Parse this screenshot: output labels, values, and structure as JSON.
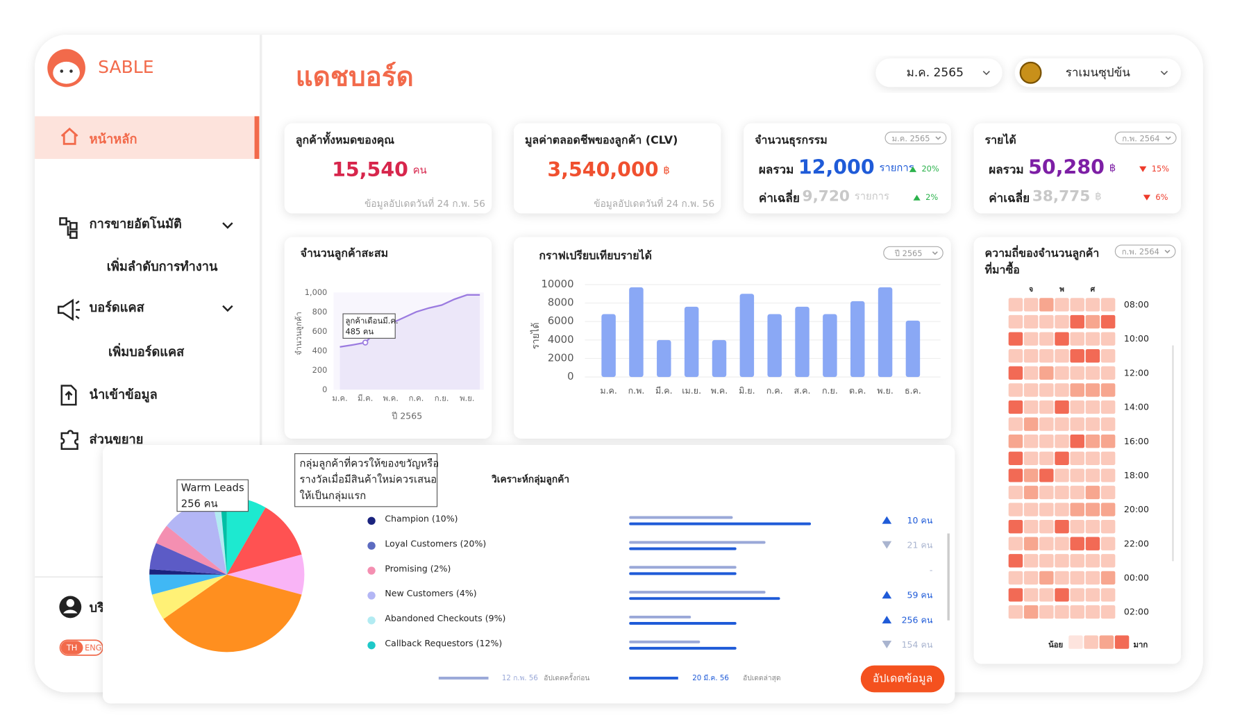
{
  "brand": "SABLE",
  "page_title": "แดชบอร์ด",
  "filters": {
    "month": "ม.ค. 2565",
    "store": "ราเมนซุปข้น"
  },
  "sidebar": {
    "items": [
      "หน้าหลัก",
      "การขายอัตโนมัติ",
      "เพิ่มลำดับการทำงาน",
      "บอร์ดแคส",
      "เพิ่มบอร์ดแคส",
      "นำเข้าข้อมูล",
      "ส่วนขยาย"
    ],
    "user": "บริ",
    "lang": [
      "TH",
      "ENG"
    ]
  },
  "kpis": [
    {
      "title": "ลูกค้าทั้งหมดของคุณ",
      "value": "15,540",
      "unit": "คน",
      "note": "ข้อมูลอัปเดตวันที่ 24 ก.พ. 56",
      "color": "#d7264c"
    },
    {
      "title": "มูลค่าตลอดชีพของลูกค้า (CLV)",
      "value": "3,540,000",
      "unit": "฿",
      "note": "ข้อมูลอัปเดตวันที่ 24 ก.พ. 56",
      "color": "#f0502f"
    },
    {
      "title": "จำนวนธุรกรรม",
      "badge": "ม.ค. 2565",
      "color": "#1f5bd8",
      "rows": [
        {
          "label": "ผลรวม",
          "value": "12,000",
          "unit": "รายการ",
          "change": "20%",
          "trend": "up"
        },
        {
          "label": "ค่าเฉลี่ย",
          "value": "9,720",
          "unit": "รายการ",
          "change": "2%",
          "trend": "up"
        }
      ]
    },
    {
      "title": "รายได้",
      "badge": "ก.พ. 2564",
      "color": "#7d1fa5",
      "rows": [
        {
          "label": "ผลรวม",
          "value": "50,280",
          "unit": "฿",
          "change": "15%",
          "trend": "down"
        },
        {
          "label": "ค่าเฉลี่ย",
          "value": "38,775",
          "unit": "฿",
          "change": "6%",
          "trend": "down"
        }
      ]
    }
  ],
  "chart_data": [
    {
      "type": "line",
      "title": "จำนวนลูกค้าสะสม",
      "y_label": "จำนวนลูกค้า",
      "x_label": "ปี 2565",
      "categories": [
        "ม.ค.",
        null,
        "มี.ค.",
        null,
        "พ.ค.",
        null,
        "ก.ค.",
        null,
        "ก.ย.",
        null,
        "พ.ย.",
        null
      ],
      "values": [
        440,
        460,
        485,
        620,
        680,
        740,
        800,
        840,
        870,
        930,
        975,
        975
      ],
      "color": "#9b7be0",
      "ylim": [
        0,
        1000
      ],
      "yticks": [
        0,
        200,
        400,
        600,
        800,
        {
          "value": 1000,
          "label": "1,000"
        }
      ],
      "grid": false,
      "tooltip": [
        "ลูกค้าเดือนมี.ค.",
        "485 คน"
      ]
    },
    {
      "type": "bar",
      "title": "กราฟเปรียบเทียบรายได้",
      "badge": "ปี 2565",
      "y_label": "รายได้",
      "categories": [
        "ม.ค.",
        "ก.พ.",
        "มี.ค.",
        "เม.ย.",
        "พ.ค.",
        "มิ.ย.",
        "ก.ค.",
        "ส.ค.",
        "ก.ย.",
        "ต.ค.",
        "พ.ย.",
        "ธ.ค."
      ],
      "values": [
        6800,
        9700,
        4000,
        7600,
        4000,
        9000,
        6800,
        7600,
        6800,
        8200,
        9700,
        6100
      ],
      "color": "#8aa8f5",
      "ylim": [
        0,
        10000
      ],
      "yticks": [
        0,
        2000,
        4000,
        6000,
        8000,
        10000
      ],
      "grid": true
    },
    {
      "type": "heatmap",
      "title": [
        "ความถี่ของจำนวนลูกค้า",
        "ที่มาซื้อ"
      ],
      "badge": "ก.พ. 2564",
      "columns": [
        null,
        "จ",
        null,
        "พ",
        null,
        "ศ",
        null
      ],
      "rows": [
        "08:00",
        null,
        "10:00",
        null,
        "12:00",
        null,
        "14:00",
        null,
        "16:00",
        null,
        "18:00",
        null,
        "20:00",
        null,
        "22:00",
        null,
        "00:00",
        null,
        "02:00"
      ],
      "values": [
        [
          1,
          1,
          2,
          1,
          1,
          1,
          1
        ],
        [
          1,
          1,
          1,
          1,
          3,
          2,
          3
        ],
        [
          3,
          1,
          1,
          3,
          1,
          1,
          1
        ],
        [
          1,
          1,
          1,
          1,
          3,
          3,
          1
        ],
        [
          3,
          1,
          2,
          1,
          1,
          1,
          1
        ],
        [
          1,
          1,
          1,
          1,
          2,
          2,
          2
        ],
        [
          3,
          1,
          1,
          3,
          1,
          1,
          1
        ],
        [
          1,
          2,
          1,
          1,
          1,
          1,
          1
        ],
        [
          2,
          1,
          1,
          1,
          3,
          2,
          2
        ],
        [
          3,
          1,
          1,
          3,
          1,
          1,
          1
        ],
        [
          3,
          2,
          3,
          1,
          1,
          1,
          1
        ],
        [
          1,
          2,
          1,
          1,
          1,
          2,
          1
        ],
        [
          1,
          1,
          1,
          1,
          2,
          2,
          2
        ],
        [
          3,
          1,
          1,
          3,
          1,
          1,
          1
        ],
        [
          1,
          2,
          1,
          1,
          3,
          3,
          1
        ],
        [
          3,
          1,
          1,
          1,
          1,
          1,
          1
        ],
        [
          1,
          1,
          2,
          1,
          1,
          1,
          2
        ],
        [
          3,
          1,
          1,
          3,
          1,
          1,
          1
        ],
        [
          1,
          2,
          1,
          1,
          1,
          1,
          1
        ]
      ],
      "color_scale": [
        "#fde4de",
        "#fbc9bb",
        "#f7a68f",
        "#f26a55"
      ],
      "legend": [
        "น้อย",
        "มาก"
      ]
    },
    {
      "type": "pie",
      "values": [
        30,
        45,
        30,
        130,
        20,
        15,
        4,
        20,
        15,
        40,
        6,
        5
      ],
      "colors": [
        "#1de9d0",
        "#ff5252",
        "#f9b4f6",
        "#ff8f1f",
        "#fff176",
        "#40b8f5",
        "#1a237e",
        "#5c5bc6",
        "#f48fb1",
        "#b3b6f5",
        "#b2ebf2",
        "#00bfa5"
      ],
      "tooltip": [
        "Warm Leads",
        "256 คน"
      ]
    },
    {
      "type": "segment-bars",
      "title": "วิเคราะห์กลุ่มลูกค้า",
      "note": [
        "กลุ่มลูกค้าที่ควรให้ของขวัญหรือ",
        "รางวัลเมื่อมีสินค้าใหม่ควรเสนอ",
        "ให้เป็นกลุ่มแรก"
      ],
      "categories": [
        "Champion (10%)",
        "Loyal Customers (20%)",
        "Promising (2%)",
        "New Customers (4%)",
        "Abandoned Checkouts (9%)",
        "Callback Requestors (12%)"
      ],
      "dot_colors": [
        "#1a237e",
        "#5c6bc0",
        "#f48fb1",
        "#b3b6f5",
        "#b2ebf2",
        "#1ec8c8"
      ],
      "counts": [
        "10 คน",
        "21 คน",
        "-",
        "59 คน",
        "256 คน",
        "154 คน"
      ],
      "trends": [
        "up",
        "down",
        "none",
        "up",
        "up",
        "down"
      ],
      "xlim": [
        0,
        100
      ],
      "series": [
        {
          "name": "อัปเดตครั้งก่อน",
          "date": "12 ก.พ. 56",
          "color": "#9aa8d8",
          "values": [
            57,
            75,
            59,
            75,
            34,
            39
          ]
        },
        {
          "name": "อัปเดตล่าสุด",
          "date": "20 มี.ค. 56",
          "color": "#1f5bd8",
          "values": [
            100,
            59,
            59,
            83,
            59,
            59
          ]
        }
      ],
      "button": "อัปเดตข้อมูล"
    }
  ]
}
